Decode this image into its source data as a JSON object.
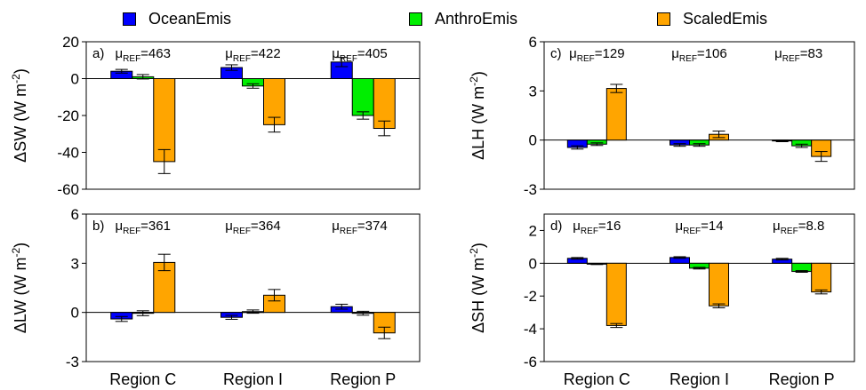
{
  "legend": [
    {
      "name": "OceanEmis",
      "color": "#0000ff"
    },
    {
      "name": "AnthroEmis",
      "color": "#00ee00"
    },
    {
      "name": "ScaledEmis",
      "color": "#ffa500"
    }
  ],
  "chart_data": [
    {
      "type": "bar",
      "panel_label": "a)",
      "ylabel": "ΔSW (W m",
      "ylabel_sup": "-2",
      "ylabel_close": ")",
      "ylim": [
        -60,
        20
      ],
      "yticks": [
        "20",
        "0",
        "-20",
        "-40",
        "-60"
      ],
      "categories": [
        "Region C",
        "Region I",
        "Region P"
      ],
      "show_xlabels": false,
      "ref_prefix": "μ",
      "ref_subscript": "REF",
      "ref_values": [
        "=463",
        "=422",
        "=405"
      ],
      "series": [
        {
          "name": "OceanEmis",
          "values": [
            4,
            6,
            9
          ],
          "errors": [
            1,
            1.5,
            2.5
          ]
        },
        {
          "name": "AnthroEmis",
          "values": [
            1,
            -4,
            -20
          ],
          "errors": [
            1.2,
            1.2,
            2
          ]
        },
        {
          "name": "ScaledEmis",
          "values": [
            -45,
            -25,
            -27
          ],
          "errors": [
            6.5,
            4,
            4
          ]
        }
      ]
    },
    {
      "type": "bar",
      "panel_label": "b)",
      "ylabel": "ΔLW (W m",
      "ylabel_sup": "-2",
      "ylabel_close": ")",
      "ylim": [
        -3,
        6
      ],
      "yticks": [
        "6",
        "3",
        "0",
        "-3"
      ],
      "categories": [
        "Region C",
        "Region I",
        "Region P"
      ],
      "show_xlabels": true,
      "ref_prefix": "μ",
      "ref_subscript": "REF",
      "ref_values": [
        "=361",
        "=364",
        "=374"
      ],
      "series": [
        {
          "name": "OceanEmis",
          "values": [
            -0.4,
            -0.3,
            0.35
          ],
          "errors": [
            0.15,
            0.12,
            0.15
          ]
        },
        {
          "name": "AnthroEmis",
          "values": [
            -0.05,
            0.05,
            -0.05
          ],
          "errors": [
            0.15,
            0.1,
            0.12
          ]
        },
        {
          "name": "ScaledEmis",
          "values": [
            3.05,
            1.05,
            -1.25
          ],
          "errors": [
            0.5,
            0.35,
            0.35
          ]
        }
      ]
    },
    {
      "type": "bar",
      "panel_label": "c)",
      "ylabel": "ΔLH (W m",
      "ylabel_sup": "-2",
      "ylabel_close": ")",
      "ylim": [
        -3,
        6
      ],
      "yticks": [
        "6",
        "3",
        "0",
        "-3"
      ],
      "categories": [
        "Region C",
        "Region I",
        "Region P"
      ],
      "show_xlabels": false,
      "ref_prefix": "μ",
      "ref_subscript": "REF",
      "ref_values": [
        "=129",
        "=106",
        "=83"
      ],
      "series": [
        {
          "name": "OceanEmis",
          "values": [
            -0.45,
            -0.3,
            -0.05
          ],
          "errors": [
            0.1,
            0.08,
            0.05
          ]
        },
        {
          "name": "AnthroEmis",
          "values": [
            -0.25,
            -0.3,
            -0.35
          ],
          "errors": [
            0.08,
            0.08,
            0.1
          ]
        },
        {
          "name": "ScaledEmis",
          "values": [
            3.15,
            0.35,
            -1.0
          ],
          "errors": [
            0.25,
            0.2,
            0.3
          ]
        }
      ]
    },
    {
      "type": "bar",
      "panel_label": "d)",
      "ylabel": "ΔSH (W m",
      "ylabel_sup": "-2",
      "ylabel_close": ")",
      "ylim": [
        -6,
        3
      ],
      "yticks": [
        "2",
        "0",
        "-2",
        "-4",
        "-6"
      ],
      "categories": [
        "Region C",
        "Region I",
        "Region P"
      ],
      "show_xlabels": true,
      "ref_prefix": "μ",
      "ref_subscript": "REF",
      "ref_values": [
        "=16",
        "=14",
        "=8.8"
      ],
      "series": [
        {
          "name": "OceanEmis",
          "values": [
            0.3,
            0.35,
            0.25
          ],
          "errors": [
            0.05,
            0.05,
            0.05
          ]
        },
        {
          "name": "AnthroEmis",
          "values": [
            -0.05,
            -0.3,
            -0.5
          ],
          "errors": [
            0.03,
            0.05,
            0.05
          ]
        },
        {
          "name": "ScaledEmis",
          "values": [
            -3.8,
            -2.6,
            -1.75
          ],
          "errors": [
            0.12,
            0.12,
            0.12
          ]
        }
      ]
    }
  ]
}
